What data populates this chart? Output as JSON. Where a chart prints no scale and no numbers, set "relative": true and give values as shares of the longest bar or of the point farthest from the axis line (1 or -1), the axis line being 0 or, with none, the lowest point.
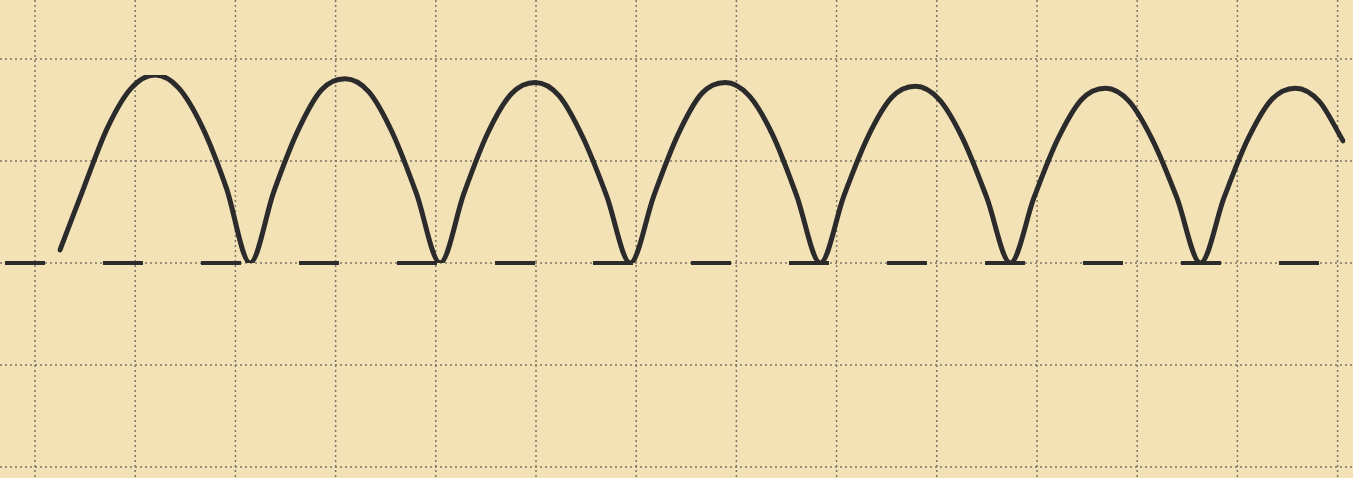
{
  "chart_data": {
    "type": "line",
    "relative": true,
    "grid": true,
    "legend": false,
    "marker": "none",
    "line_style": "solid",
    "categories": [
      null,
      null,
      null,
      null,
      null,
      null,
      null,
      null,
      null,
      null,
      null,
      null,
      null,
      null,
      null,
      null,
      null,
      null,
      null,
      null,
      null,
      null,
      null,
      null,
      null,
      null,
      null,
      null,
      null,
      null,
      null,
      null,
      null,
      null,
      null,
      null,
      null,
      null,
      null,
      null,
      null,
      null,
      null,
      null,
      null,
      null,
      null,
      null,
      null,
      null,
      null,
      null,
      null,
      null,
      null
    ],
    "series": [
      {
        "color": "#2b2b2b",
        "values": [
          0.07,
          0.4,
          0.72,
          0.93,
          1.0,
          0.93,
          0.72,
          0.4,
          0,
          0.38,
          0.7,
          0.92,
          0.98,
          0.91,
          0.69,
          0.37,
          0,
          0.37,
          0.69,
          0.9,
          0.96,
          0.89,
          0.67,
          0.36,
          0,
          0.36,
          0.68,
          0.9,
          0.96,
          0.89,
          0.68,
          0.36,
          0,
          0.36,
          0.67,
          0.88,
          0.94,
          0.87,
          0.66,
          0.35,
          0,
          0.35,
          0.66,
          0.87,
          0.93,
          0.86,
          0.65,
          0.35,
          0,
          0.35,
          0.66,
          0.87,
          0.93,
          0.86,
          0.65
        ]
      }
    ]
  }
}
